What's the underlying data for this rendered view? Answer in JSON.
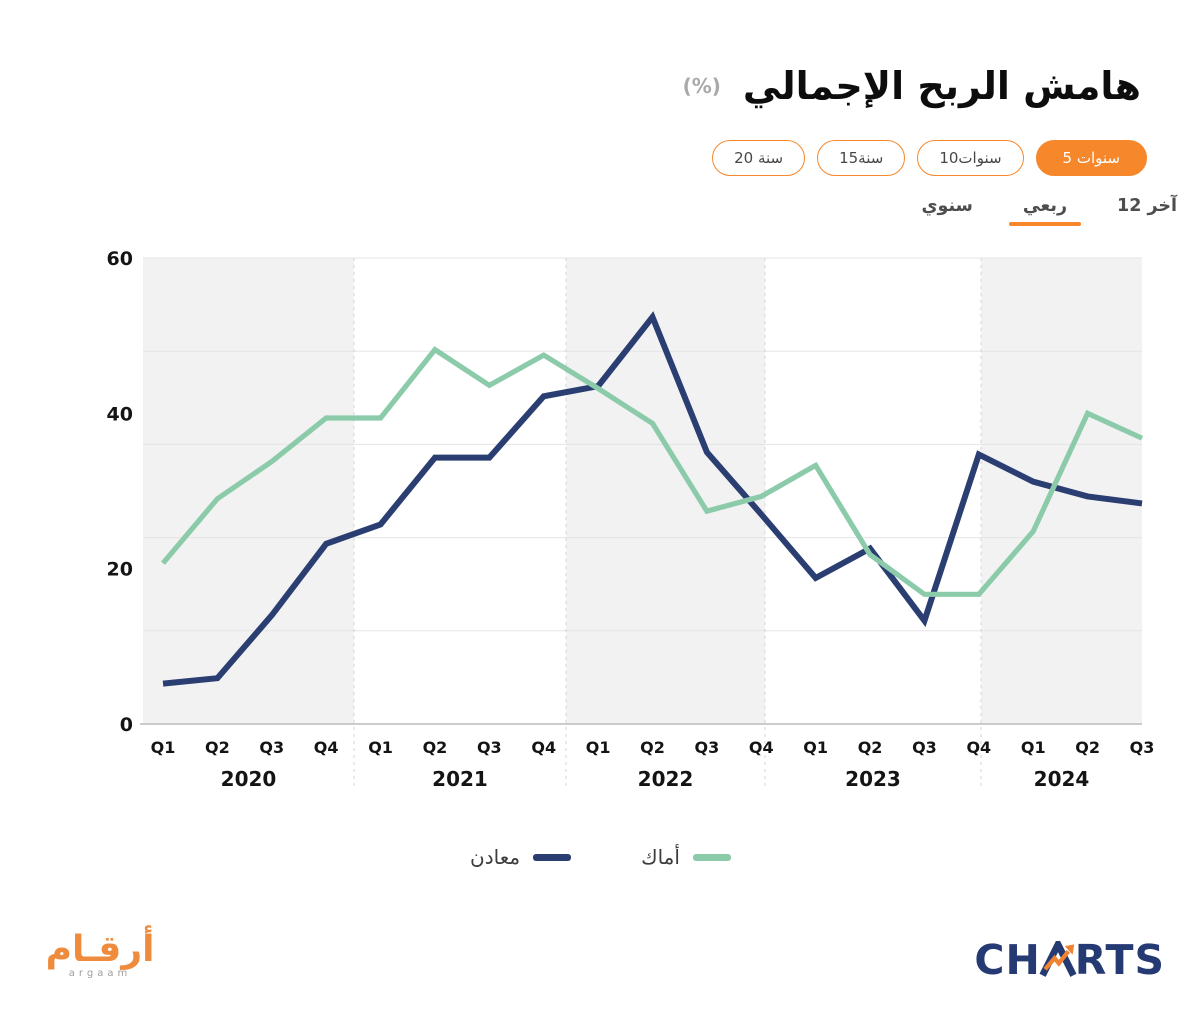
{
  "header": {
    "title": "هامش الربح الإجمالي",
    "unit": "(%)",
    "period_buttons": [
      {
        "label": "20 سنة",
        "active": false
      },
      {
        "label": "15سنة",
        "active": false
      },
      {
        "label": "10سنوات",
        "active": false
      },
      {
        "label": "5 سنوات",
        "active": true
      }
    ],
    "view_tabs": [
      {
        "label": "سنوي",
        "active": false
      },
      {
        "label": "ربعي",
        "active": true
      },
      {
        "label": "آخر 12",
        "active": false
      }
    ]
  },
  "colors": {
    "accent_orange": "#f6872b",
    "maaden_navy": "#2b3e72",
    "amak_green": "#8ccbaa",
    "band_gray": "#f2f2f2"
  },
  "chart_data": {
    "type": "line",
    "title": "هامش الربح الإجمالي",
    "unit": "%",
    "ylim": [
      0,
      60
    ],
    "yticks": [
      0,
      20,
      40,
      60
    ],
    "gridline_values": [
      12,
      24,
      36,
      48,
      60
    ],
    "grid": "on",
    "legend_position": "bottom",
    "quarter_labels": [
      "Q1",
      "Q2",
      "Q3",
      "Q4",
      "Q1",
      "Q2",
      "Q3",
      "Q4",
      "Q1",
      "Q2",
      "Q3",
      "Q4",
      "Q1",
      "Q2",
      "Q3",
      "Q4",
      "Q1",
      "Q2",
      "Q3"
    ],
    "year_groups": [
      {
        "label": "2020",
        "quarters": 4
      },
      {
        "label": "2021",
        "quarters": 4
      },
      {
        "label": "2022",
        "quarters": 4
      },
      {
        "label": "2023",
        "quarters": 4
      },
      {
        "label": "2024",
        "quarters": 3
      }
    ],
    "series": [
      {
        "name": "معادن",
        "color": "#2b3e72",
        "values": [
          5.2,
          5.9,
          14.0,
          23.2,
          25.7,
          34.3,
          34.3,
          42.2,
          43.5,
          52.4,
          35.0,
          27.0,
          18.8,
          22.6,
          13.3,
          34.7,
          31.2,
          29.3,
          28.4
        ]
      },
      {
        "name": "أماك",
        "color": "#8ccbaa",
        "values": [
          20.7,
          29.0,
          33.8,
          39.4,
          39.4,
          48.2,
          43.6,
          47.5,
          43.2,
          38.7,
          27.4,
          29.3,
          33.3,
          21.8,
          16.7,
          16.7,
          24.8,
          40.0,
          36.8
        ]
      }
    ]
  },
  "footer": {
    "argaam_logo": {
      "text": "أرقـام",
      "subtext": "argaam"
    },
    "charts_logo": {
      "left": "CH",
      "right": "RTS"
    }
  }
}
